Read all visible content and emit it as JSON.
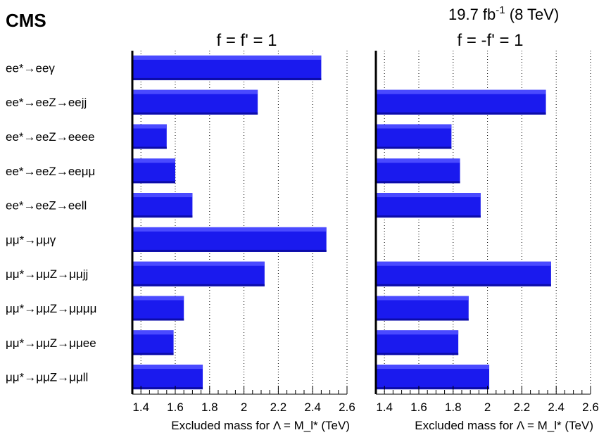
{
  "header": {
    "experiment": "CMS",
    "lumi_prefix": "19.7 fb",
    "lumi_exp": "-1",
    "lumi_suffix": " (8 TeV)"
  },
  "chart_data": {
    "type": "bar",
    "orientation": "horizontal",
    "categories": [
      "ee*→eeγ",
      "ee*→eeZ→eejj",
      "ee*→eeZ→eeee",
      "ee*→eeZ→eeμμ",
      "ee*→eeZ→eell",
      "μμ*→μμγ",
      "μμ*→μμZ→μμjj",
      "μμ*→μμZ→μμμμ",
      "μμ*→μμZ→μμee",
      "μμ*→μμZ→μμll"
    ],
    "panels": [
      {
        "title": "f = f' = 1",
        "xlabel": "Excluded mass for Λ = M_l* (TeV)",
        "xlim": [
          1.35,
          2.6
        ],
        "xticks": [
          "1.4",
          "1.6",
          "1.8",
          "2",
          "2.2",
          "2.4",
          "2.6"
        ],
        "values": [
          2.45,
          2.08,
          1.55,
          1.6,
          1.7,
          2.48,
          2.12,
          1.65,
          1.59,
          1.76
        ]
      },
      {
        "title": "f = -f' = 1",
        "xlabel": "Excluded mass for Λ = M_l* (TeV)",
        "xlim": [
          1.35,
          2.6
        ],
        "xticks": [
          "1.4",
          "1.6",
          "1.8",
          "2",
          "2.2",
          "2.4",
          "2.6"
        ],
        "values": [
          null,
          2.34,
          1.79,
          1.84,
          1.96,
          null,
          2.37,
          1.89,
          1.83,
          2.01
        ]
      }
    ],
    "bar_color": "#1a1aee",
    "bar_highlight_color": "#4a4aff",
    "grid": "vertical dotted"
  }
}
